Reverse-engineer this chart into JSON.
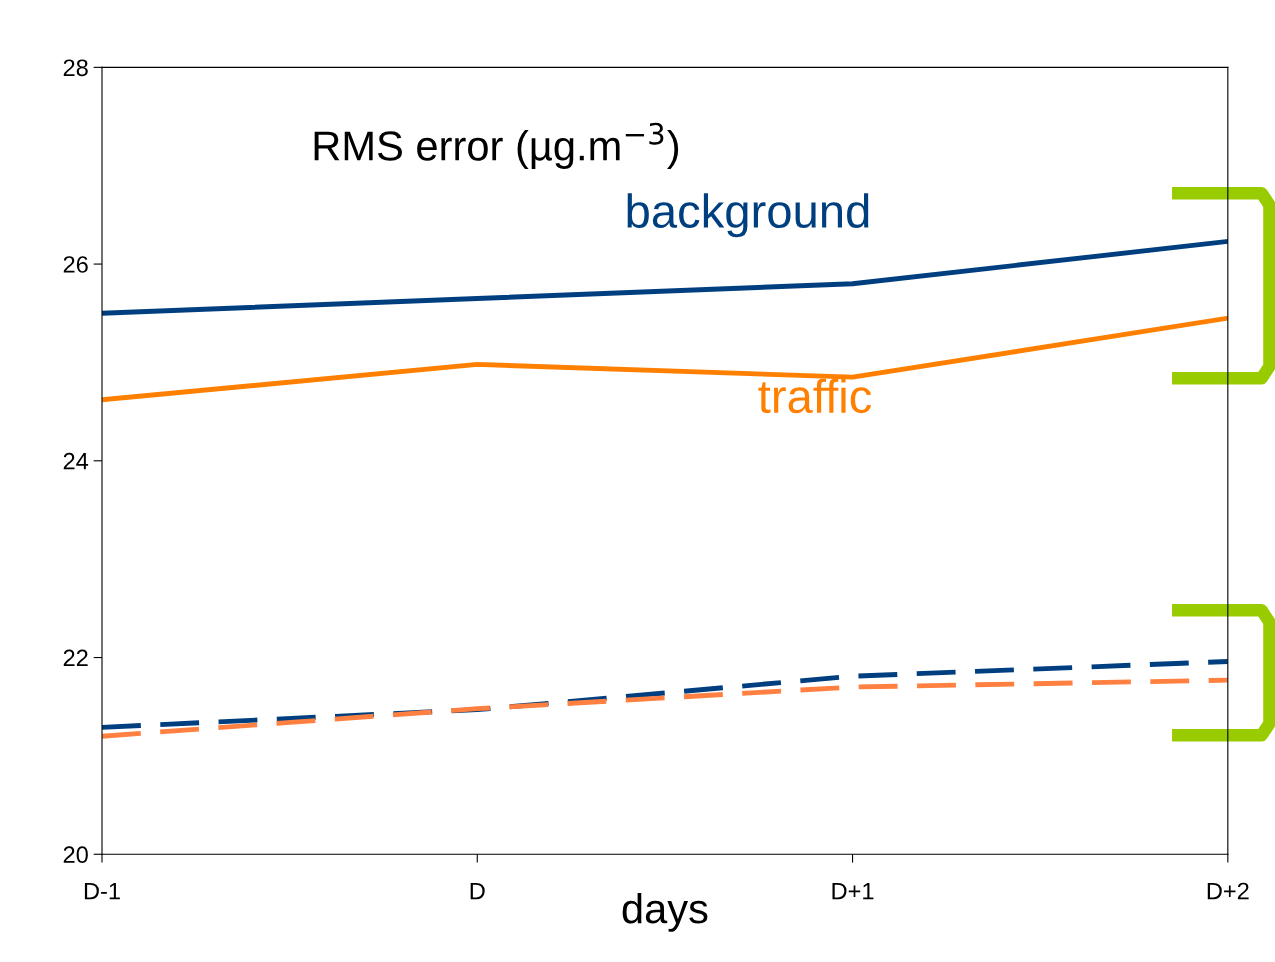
{
  "chart_data": {
    "type": "line",
    "title": "RMS error (µg.m$^{−3}$)",
    "xlabel": "days",
    "categories": [
      "D-1",
      "D",
      "D+1",
      "D+2"
    ],
    "series": [
      {
        "name": "background",
        "color": "#003f7f",
        "values": [
          25.5,
          25.65,
          25.8,
          26.23
        ],
        "line_style": "solid"
      },
      {
        "name": "traffic",
        "color": "#ff8000",
        "values": [
          24.62,
          24.98,
          24.85,
          25.45
        ],
        "line_style": "solid"
      },
      {
        "color": "#003f7f",
        "values": [
          21.29,
          21.47,
          21.81,
          21.96
        ],
        "line_style": "dashed"
      },
      {
        "color": "#ff8040",
        "values": [
          21.2,
          21.48,
          21.7,
          21.77
        ],
        "line_style": "dashed"
      }
    ],
    "ylim": [
      20,
      28
    ],
    "yticks": [
      20,
      22,
      24,
      26,
      28
    ],
    "grid": false,
    "legend": false,
    "marker": "none"
  }
}
